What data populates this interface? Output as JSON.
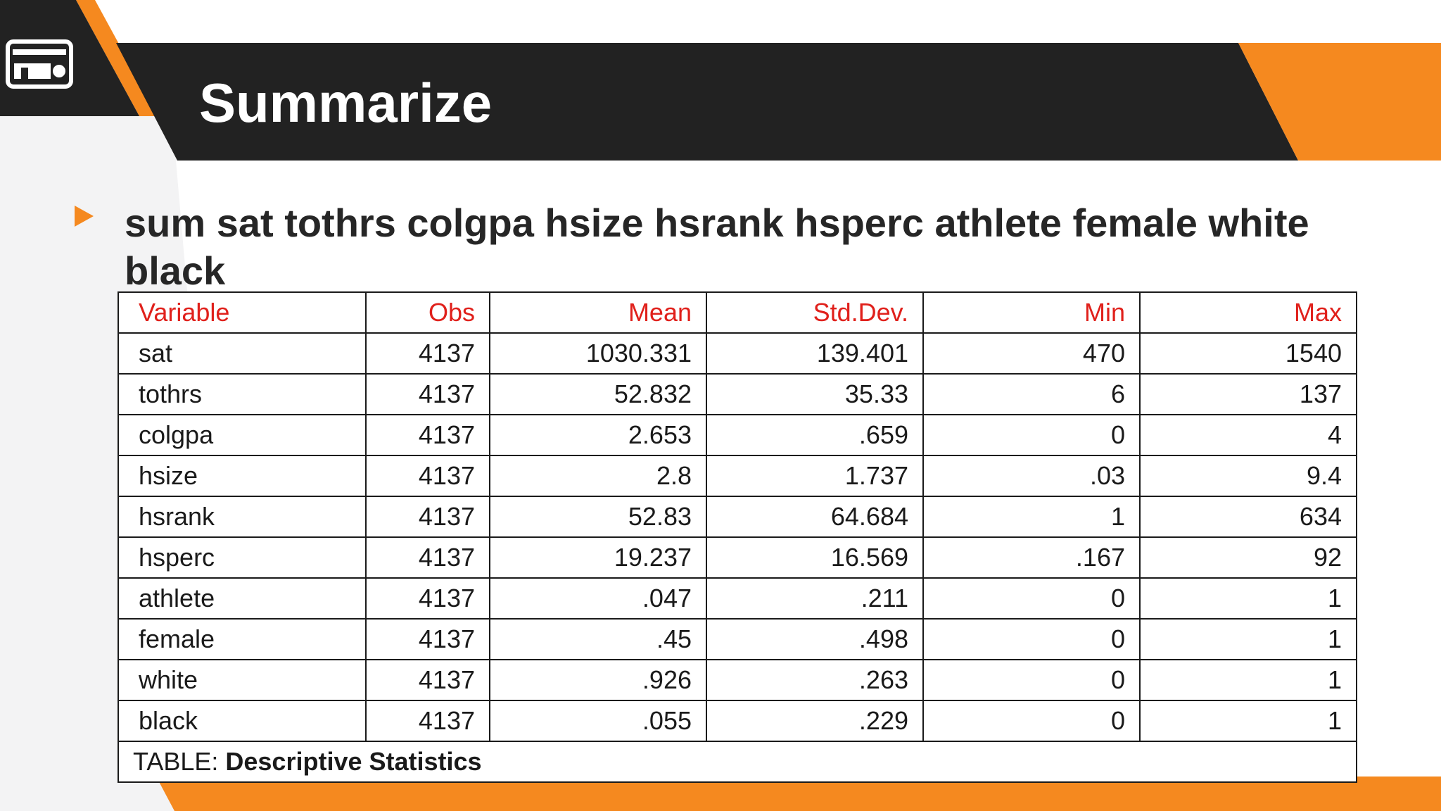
{
  "slide": {
    "title": "Summarize",
    "command": "sum sat tothrs colgpa hsize hsrank hsperc athlete female white black",
    "logo_icon": "card-icon",
    "colors": {
      "dark_band": "#222222",
      "accent_orange": "#f5891f",
      "header_text_red": "#e0201b"
    }
  },
  "table": {
    "columns": [
      "Variable",
      "Obs",
      "Mean",
      "Std.Dev.",
      "Min",
      "Max"
    ],
    "rows": [
      [
        "sat",
        "4137",
        "1030.331",
        "139.401",
        "470",
        "1540"
      ],
      [
        "tothrs",
        "4137",
        "52.832",
        "35.33",
        "6",
        "137"
      ],
      [
        "colgpa",
        "4137",
        "2.653",
        ".659",
        "0",
        "4"
      ],
      [
        "hsize",
        "4137",
        "2.8",
        "1.737",
        ".03",
        "9.4"
      ],
      [
        "hsrank",
        "4137",
        "52.83",
        "64.684",
        "1",
        "634"
      ],
      [
        "hsperc",
        "4137",
        "19.237",
        "16.569",
        ".167",
        "92"
      ],
      [
        "athlete",
        "4137",
        ".047",
        ".211",
        "0",
        "1"
      ],
      [
        "female",
        "4137",
        ".45",
        ".498",
        "0",
        "1"
      ],
      [
        "white",
        "4137",
        ".926",
        ".263",
        "0",
        "1"
      ],
      [
        "black",
        "4137",
        ".055",
        ".229",
        "0",
        "1"
      ]
    ],
    "caption_prefix": "TABLE: ",
    "caption_title": "Descriptive Statistics"
  }
}
